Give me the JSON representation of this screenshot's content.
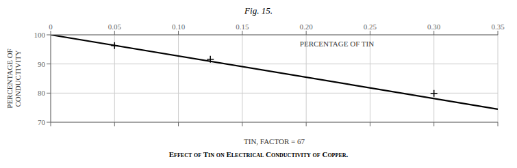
{
  "chart_data": {
    "type": "line",
    "title": "Fig. 15.",
    "caption": "Effect of Tin on Electrical Conductivity of Copper.",
    "xlabel": "TIN, FACTOR = 67",
    "ylabel": "PERCENTAGE OF\nCONDUCTIVITY",
    "xlim": [
      0,
      0.35
    ],
    "ylim": [
      70,
      100
    ],
    "xticks": [
      0,
      0.05,
      {
        "value": 0.1,
        "label": "0.10"
      },
      0.15,
      {
        "value": 0.2,
        "label": "0.20"
      },
      0.25,
      {
        "value": 0.3,
        "label": "0.30"
      },
      0.35
    ],
    "yticks": [
      70,
      80,
      90,
      100
    ],
    "grid": true,
    "series": [
      {
        "type": "line",
        "color": "#000000",
        "x": [
          0,
          0.35
        ],
        "values": [
          100,
          74.5
        ]
      },
      {
        "type": "scatter",
        "color": "#000000",
        "marker": "+",
        "x": [
          0.05,
          0.125,
          0.3
        ],
        "values": [
          96.3,
          91.6,
          79.9
        ]
      }
    ],
    "annotations": [
      {
        "text": "PERCENTAGE OF TIN",
        "x": 0.195,
        "y": 97.8
      }
    ]
  }
}
